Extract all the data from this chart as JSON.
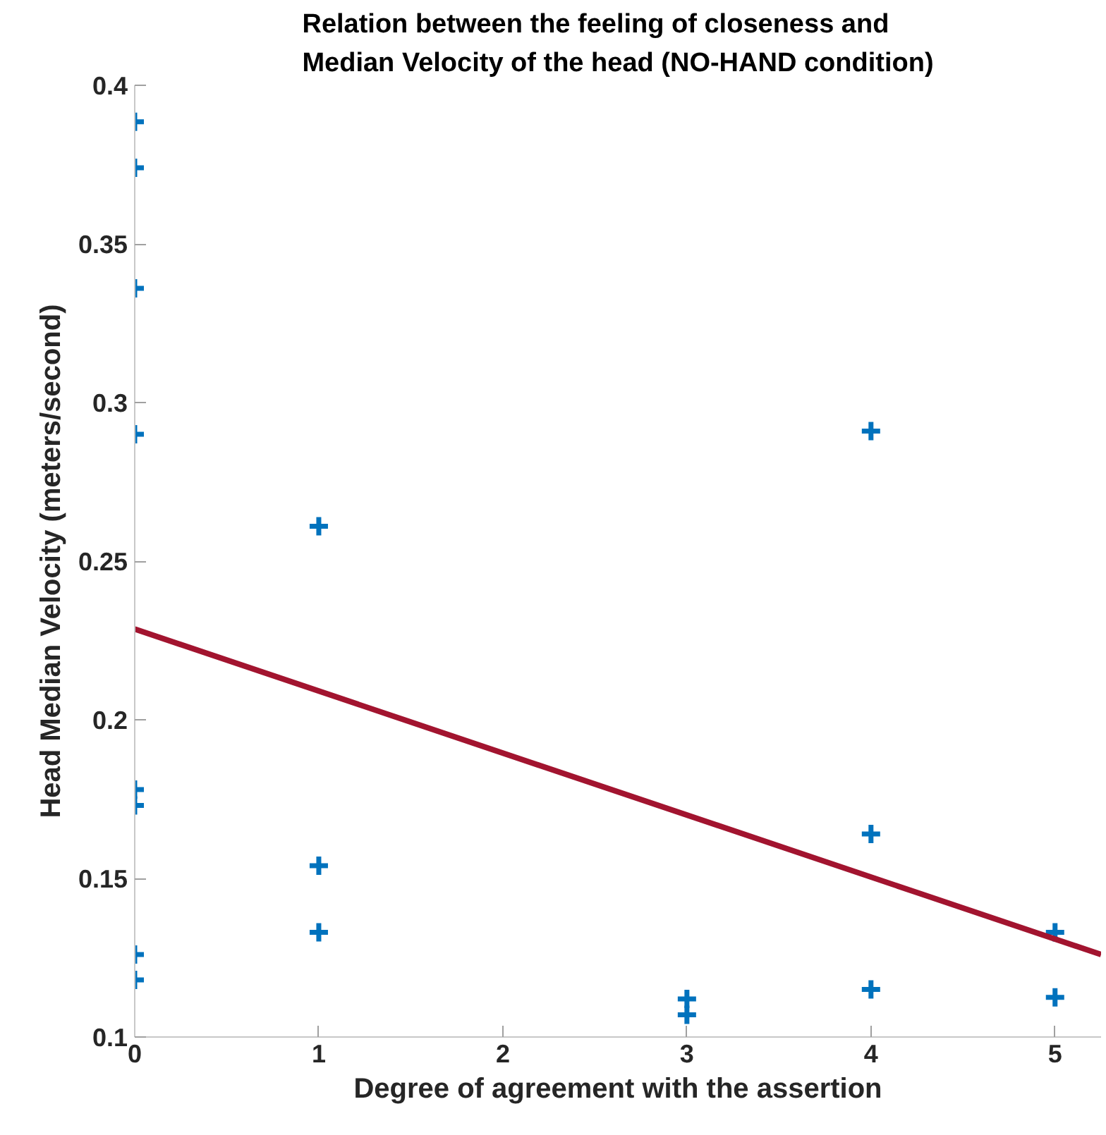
{
  "chart_data": {
    "type": "scatter",
    "title": "Relation between the feeling of closeness and\nMedian Velocity of the head (NO-HAND condition)",
    "xlabel": "Degree of agreement with the assertion",
    "ylabel": "Head Median Velocity (meters/second)",
    "xlim": [
      0,
      5.25
    ],
    "ylim": [
      0.1,
      0.4
    ],
    "xticks": [
      0,
      1,
      2,
      3,
      4,
      5
    ],
    "yticks": [
      0.1,
      0.15,
      0.2,
      0.25,
      0.3,
      0.35,
      0.4
    ],
    "grid": false,
    "marker": "cross",
    "series": [
      {
        "color": "#0072bd",
        "x": [
          0,
          0,
          0,
          0,
          0,
          0,
          0,
          0,
          1,
          1,
          1,
          3,
          3,
          4,
          4,
          4,
          5,
          5
        ],
        "values": [
          0.3885,
          0.374,
          0.336,
          0.29,
          0.178,
          0.173,
          0.126,
          0.118,
          0.261,
          0.154,
          0.133,
          0.112,
          0.107,
          0.291,
          0.164,
          0.115,
          0.133,
          0.1125
        ]
      },
      {
        "type": "line",
        "marker": "none",
        "color": "#a2142f",
        "x": [
          0,
          5.25
        ],
        "values": [
          0.2286,
          0.126
        ]
      }
    ]
  }
}
